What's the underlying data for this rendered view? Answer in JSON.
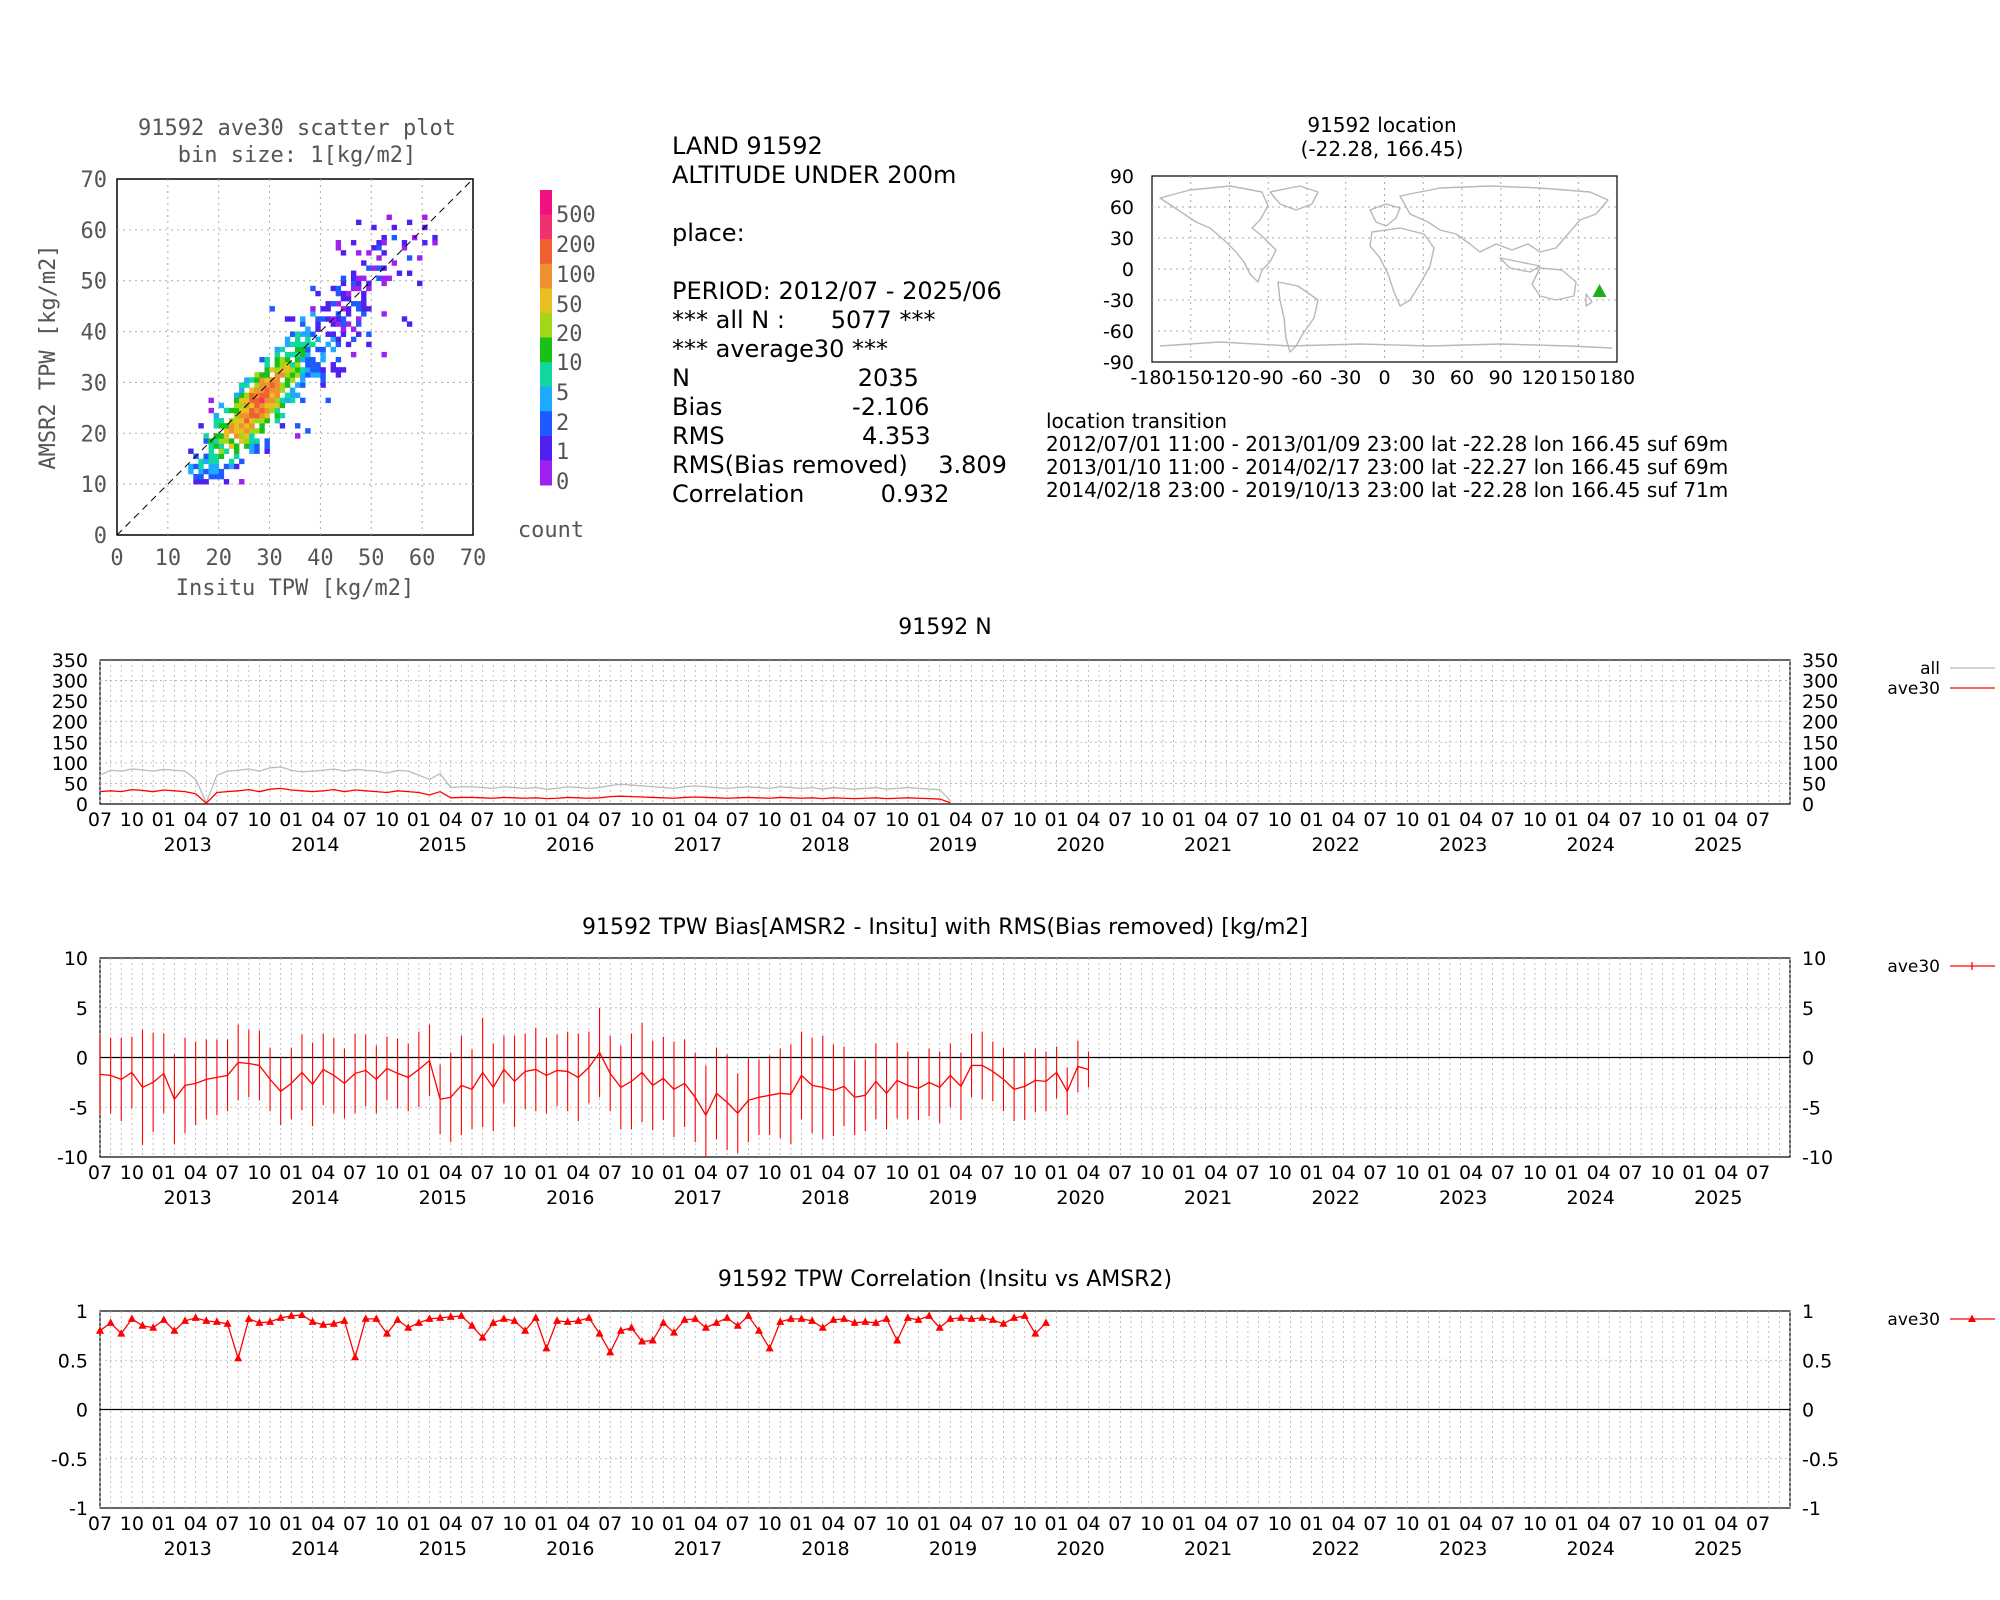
{
  "scatter": {
    "title": "91592 ave30 scatter plot",
    "subtitle": "bin size: 1[kg/m2]",
    "xlabel": "Insitu TPW [kg/m2]",
    "ylabel": "AMSR2 TPW [kg/m2]",
    "ticks": [
      "0",
      "10",
      "20",
      "30",
      "40",
      "50",
      "60",
      "70"
    ],
    "colorbar_labels": [
      "500",
      "200",
      "100",
      "50",
      "20",
      "10",
      "5",
      "2",
      "1",
      "0"
    ],
    "colorbar_title": "count",
    "colors": [
      "#a020f0",
      "#5020f0",
      "#1e5aff",
      "#1eaaff",
      "#10d8a0",
      "#18c018",
      "#a0d818",
      "#e8c020",
      "#f09030",
      "#f06030",
      "#f03070",
      "#f01080"
    ]
  },
  "info": {
    "lines": [
      "LAND 91592",
      "ALTITUDE UNDER 200m",
      "",
      "place:",
      "",
      "PERIOD: 2012/07 - 2025/06",
      "*** all N :      5077 ***",
      "*** average30 ***",
      "N                      2035",
      "Bias                 -2.106",
      "RMS                  4.353",
      "RMS(Bias removed)    3.809",
      "Correlation          0.932"
    ]
  },
  "map": {
    "title": "91592 location",
    "subtitle": "(-22.28, 166.45)",
    "lat": -22.28,
    "lon": 166.45,
    "yticks": [
      "90",
      "60",
      "30",
      "0",
      "-30",
      "-60",
      "-90"
    ],
    "xticks": [
      "-180",
      "-150",
      "-120",
      "-90",
      "-60",
      "-30",
      "0",
      "30",
      "60",
      "90",
      "120",
      "150",
      "180"
    ],
    "marker_color": "#18b018"
  },
  "transition": {
    "title": "location transition",
    "lines": [
      "2012/07/01 11:00 - 2013/01/09 23:00 lat -22.28 lon 166.45 suf 69m",
      "2013/01/10 11:00 - 2014/02/17 23:00 lat -22.27 lon 166.45 suf 69m",
      "2014/02/18 23:00 - 2019/10/13 23:00 lat -22.28 lon 166.45 suf 71m"
    ]
  },
  "chart_data": [
    {
      "type": "line",
      "title": "91592 N",
      "ylim": [
        0,
        350
      ],
      "yticks": [
        "350",
        "300",
        "250",
        "200",
        "150",
        "100",
        "50",
        "0"
      ],
      "month_labels": [
        "07",
        "10",
        "01",
        "04"
      ],
      "years": [
        "2013",
        "2014",
        "2015",
        "2016",
        "2017",
        "2018",
        "2019",
        "2020",
        "2021",
        "2022",
        "2023",
        "2024",
        "2025"
      ],
      "legend": [
        "all",
        "ave30"
      ],
      "series": [
        {
          "name": "all",
          "color": "#bbbbbb",
          "values": [
            70,
            82,
            80,
            85,
            83,
            80,
            84,
            82,
            80,
            60,
            4,
            70,
            80,
            82,
            85,
            80,
            88,
            90,
            82,
            78,
            80,
            82,
            85,
            80,
            84,
            82,
            80,
            75,
            82,
            80,
            70,
            60,
            74,
            40,
            42,
            42,
            40,
            38,
            42,
            40,
            38,
            40,
            36,
            38,
            42,
            40,
            38,
            40,
            45,
            48,
            46,
            44,
            42,
            40,
            38,
            42,
            44,
            42,
            40,
            38,
            40,
            42,
            40,
            38,
            42,
            40,
            38,
            40,
            36,
            40,
            38,
            36,
            38,
            40,
            36,
            38,
            40,
            38,
            36,
            35,
            8
          ]
        },
        {
          "name": "ave30",
          "color": "#ff0000",
          "values": [
            30,
            32,
            30,
            35,
            33,
            30,
            34,
            32,
            30,
            25,
            2,
            28,
            30,
            32,
            35,
            30,
            36,
            38,
            34,
            32,
            30,
            32,
            35,
            30,
            34,
            32,
            30,
            28,
            32,
            30,
            28,
            22,
            30,
            15,
            16,
            16,
            15,
            14,
            16,
            15,
            14,
            15,
            13,
            14,
            16,
            15,
            14,
            15,
            18,
            19,
            18,
            17,
            16,
            15,
            14,
            16,
            17,
            16,
            15,
            14,
            15,
            16,
            15,
            14,
            16,
            15,
            14,
            15,
            13,
            15,
            14,
            13,
            14,
            15,
            13,
            14,
            15,
            14,
            13,
            12,
            3
          ]
        }
      ]
    },
    {
      "type": "line",
      "title": "91592 TPW Bias[AMSR2 - Insitu] with RMS(Bias removed) [kg/m2]",
      "ylim": [
        -10,
        10
      ],
      "yticks": [
        "10",
        "5",
        "0",
        "-5",
        "-10"
      ],
      "month_labels": [
        "07",
        "10",
        "01",
        "04"
      ],
      "years": [
        "2013",
        "2014",
        "2015",
        "2016",
        "2017",
        "2018",
        "2019",
        "2020",
        "2021",
        "2022",
        "2023",
        "2024",
        "2025"
      ],
      "legend": [
        "ave30"
      ],
      "series": [
        {
          "name": "ave30",
          "color": "#ff0000",
          "values": [
            -1.7,
            -1.8,
            -2.2,
            -1.5,
            -3.0,
            -2.5,
            -1.6,
            -4.2,
            -2.8,
            -2.6,
            -2.2,
            -2.0,
            -1.8,
            -0.5,
            -0.6,
            -0.8,
            -2.2,
            -3.4,
            -2.6,
            -1.5,
            -2.7,
            -1.2,
            -1.8,
            -2.6,
            -1.6,
            -1.3,
            -2.2,
            -1.1,
            -1.6,
            -2.0,
            -1.2,
            -0.3,
            -4.2,
            -4.0,
            -2.8,
            -3.2,
            -1.5,
            -3.0,
            -1.2,
            -2.4,
            -1.4,
            -1.2,
            -1.8,
            -1.3,
            -1.4,
            -2.0,
            -1.0,
            0.5,
            -1.6,
            -3.0,
            -2.4,
            -1.5,
            -2.8,
            -2.1,
            -3.2,
            -2.6,
            -4.0,
            -5.8,
            -3.6,
            -4.5,
            -5.6,
            -4.3,
            -4.0,
            -3.8,
            -3.6,
            -3.7,
            -1.8,
            -2.8,
            -3.0,
            -3.3,
            -2.9,
            -4.0,
            -3.8,
            -2.4,
            -3.6,
            -2.3,
            -2.8,
            -3.1,
            -2.5,
            -3.0,
            -1.8,
            -2.9,
            -0.8,
            -0.8,
            -1.4,
            -2.2,
            -3.2,
            -2.9,
            -2.3,
            -2.4,
            -1.5,
            -3.4,
            -0.9,
            -1.2
          ],
          "rms": [
            4.0,
            3.8,
            4.2,
            3.6,
            5.8,
            5.0,
            4.0,
            4.5,
            4.8,
            4.2,
            4.0,
            3.8,
            3.6,
            3.8,
            3.4,
            3.5,
            3.2,
            3.4,
            3.6,
            3.8,
            4.2,
            3.6,
            3.8,
            3.5,
            4.0,
            3.6,
            3.4,
            3.2,
            3.5,
            3.4,
            3.8,
            3.6,
            3.5,
            4.5,
            5.0,
            4.0,
            5.5,
            4.4,
            3.4,
            4.6,
            3.8,
            4.2,
            3.8,
            3.6,
            4.0,
            4.4,
            3.6,
            4.5,
            3.8,
            4.2,
            4.8,
            5.0,
            4.5,
            4.2,
            4.8,
            4.4,
            4.5,
            5.0,
            4.6,
            4.8,
            4.0,
            4.2,
            3.8,
            4.0,
            4.5,
            5.0,
            4.4,
            4.8,
            5.2,
            4.6,
            4.0,
            3.8,
            3.6,
            3.8,
            3.6,
            3.8,
            3.4,
            3.2,
            3.4,
            3.6,
            3.2,
            3.4,
            3.2,
            3.4,
            3.0,
            3.2,
            3.2,
            3.4,
            3.2,
            3.0,
            2.6,
            2.4,
            2.6,
            1.8
          ]
        }
      ]
    },
    {
      "type": "line",
      "title": "91592 TPW Correlation (Insitu vs AMSR2)",
      "ylim": [
        -1,
        1
      ],
      "yticks": [
        "1",
        "0.5",
        "0",
        "-0.5",
        "-1"
      ],
      "month_labels": [
        "07",
        "10",
        "01",
        "04"
      ],
      "years": [
        "2013",
        "2014",
        "2015",
        "2016",
        "2017",
        "2018",
        "2019",
        "2020",
        "2021",
        "2022",
        "2023",
        "2024",
        "2025"
      ],
      "legend": [
        "ave30"
      ],
      "series": [
        {
          "name": "ave30",
          "color": "#ff0000",
          "values": [
            0.8,
            0.88,
            0.77,
            0.92,
            0.85,
            0.83,
            0.91,
            0.8,
            0.9,
            0.93,
            0.9,
            0.89,
            0.87,
            0.52,
            0.92,
            0.88,
            0.89,
            0.93,
            0.95,
            0.96,
            0.89,
            0.86,
            0.87,
            0.9,
            0.53,
            0.92,
            0.92,
            0.77,
            0.91,
            0.83,
            0.88,
            0.92,
            0.93,
            0.94,
            0.95,
            0.85,
            0.73,
            0.88,
            0.92,
            0.9,
            0.8,
            0.93,
            0.62,
            0.9,
            0.89,
            0.9,
            0.93,
            0.77,
            0.58,
            0.8,
            0.83,
            0.69,
            0.7,
            0.88,
            0.78,
            0.91,
            0.92,
            0.83,
            0.88,
            0.93,
            0.85,
            0.95,
            0.8,
            0.62,
            0.89,
            0.92,
            0.92,
            0.9,
            0.83,
            0.91,
            0.92,
            0.88,
            0.89,
            0.88,
            0.92,
            0.7,
            0.93,
            0.91,
            0.95,
            0.83,
            0.92,
            0.93,
            0.92,
            0.93,
            0.91,
            0.87,
            0.93,
            0.95,
            0.77,
            0.88
          ]
        }
      ]
    }
  ]
}
